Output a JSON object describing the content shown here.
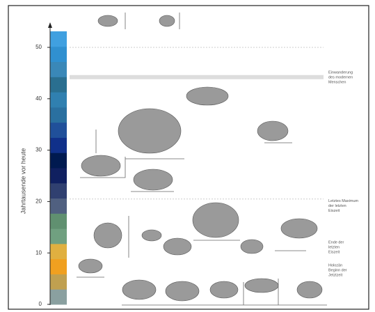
{
  "axis": {
    "label": "Jahrtausende vor heute",
    "ticks": [
      0,
      10,
      20,
      30,
      40,
      50
    ]
  },
  "annotations": [
    {
      "lines": [
        "Einwanderung",
        "des modernen",
        "Menschen"
      ],
      "age": 44
    },
    {
      "lines": [
        "Letztes Maximum",
        "der letzten",
        "Eiszeit"
      ],
      "age": 19
    },
    {
      "lines": [
        "Ende der",
        "letzten",
        "Eiszeit"
      ],
      "age": 11
    },
    {
      "lines": [
        "Holozän",
        "Beginn der",
        "Jetztzeit"
      ],
      "age": 6.5
    }
  ]
}
